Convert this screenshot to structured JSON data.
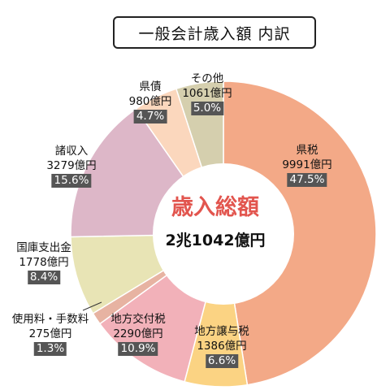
{
  "title": "一般会計歳入額 内訳",
  "chart_data": {
    "type": "pie",
    "center_label": "歳入総額",
    "center_value": "2兆1042億円",
    "slices": [
      {
        "name": "県税",
        "amount": "9991億円",
        "percent": 47.5,
        "percent_label": "47.5%",
        "color": "#f3a987"
      },
      {
        "name": "地方譲与税",
        "amount": "1386億円",
        "percent": 6.6,
        "percent_label": "6.6%",
        "color": "#fbd383"
      },
      {
        "name": "地方交付税",
        "amount": "2290億円",
        "percent": 10.9,
        "percent_label": "10.9%",
        "color": "#f2b1b9"
      },
      {
        "name": "使用料・手数料",
        "amount": "275億円",
        "percent": 1.3,
        "percent_label": "1.3%",
        "color": "#e7b3a2"
      },
      {
        "name": "国庫支出金",
        "amount": "1778億円",
        "percent": 8.4,
        "percent_label": "8.4%",
        "color": "#e8e4b5"
      },
      {
        "name": "諸収入",
        "amount": "3279億円",
        "percent": 15.6,
        "percent_label": "15.6%",
        "color": "#ddb7c8"
      },
      {
        "name": "県債",
        "amount": "980億円",
        "percent": 4.7,
        "percent_label": "4.7%",
        "color": "#fbd7bd"
      },
      {
        "name": "その他",
        "amount": "1061億円",
        "percent": 5.0,
        "percent_label": "5.0%",
        "color": "#d5cfae"
      }
    ]
  }
}
